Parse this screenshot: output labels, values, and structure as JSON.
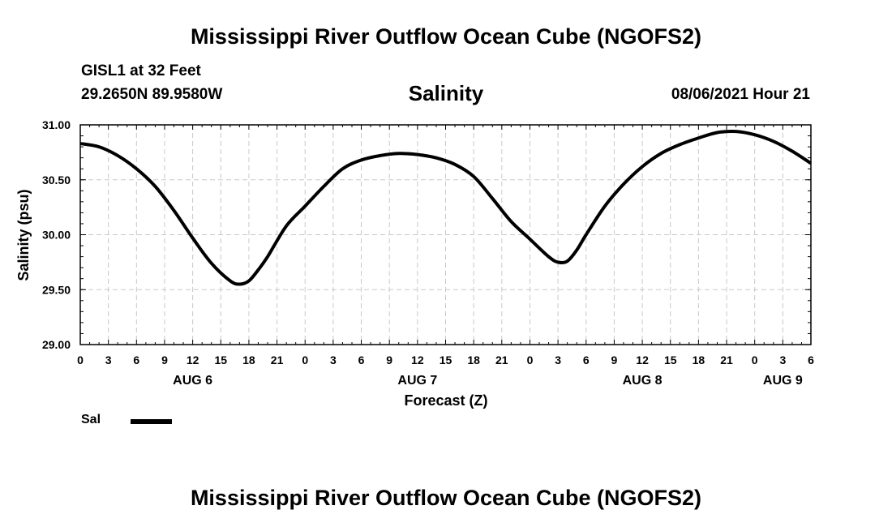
{
  "header": {
    "title": "Mississippi River Outflow Ocean Cube (NGOFS2)",
    "station": "GISL1 at 32 Feet",
    "coordinates": "29.2650N  89.9580W",
    "variable": "Salinity",
    "timestamp": "08/06/2021 Hour 21"
  },
  "footer": {
    "title": "Mississippi River Outflow Ocean Cube (NGOFS2)"
  },
  "legend": {
    "label": "Sal",
    "color": "#000000"
  },
  "chart_data": {
    "type": "line",
    "title": "Salinity",
    "xlabel": "Forecast (Z)",
    "ylabel": "Salinity (psu)",
    "ylim": [
      29.0,
      31.0
    ],
    "yticks": [
      "29.00",
      "29.50",
      "30.00",
      "30.50",
      "31.00"
    ],
    "xlim_hours": [
      0,
      78
    ],
    "xtick_labels": [
      "0",
      "3",
      "6",
      "9",
      "12",
      "15",
      "18",
      "21",
      "0",
      "3",
      "6",
      "9",
      "12",
      "15",
      "18",
      "21",
      "0",
      "3",
      "6",
      "9",
      "12",
      "15",
      "18",
      "21",
      "0",
      "3",
      "6"
    ],
    "date_labels": [
      {
        "label": "AUG 6",
        "hour": 12
      },
      {
        "label": "AUG 7",
        "hour": 36
      },
      {
        "label": "AUG 8",
        "hour": 60
      },
      {
        "label": "AUG 9",
        "hour": 75
      }
    ],
    "grid": true,
    "series": [
      {
        "name": "Sal",
        "color": "#000000",
        "x": [
          0,
          2,
          4,
          6,
          8,
          10,
          12,
          14,
          16,
          17,
          18,
          19,
          20,
          22,
          24,
          26,
          28,
          30,
          32,
          34,
          36,
          38,
          40,
          42,
          44,
          46,
          48,
          50,
          51,
          52,
          53,
          54,
          56,
          58,
          60,
          62,
          64,
          66,
          68,
          70,
          72,
          74,
          76,
          78
        ],
        "values": [
          30.83,
          30.8,
          30.72,
          30.6,
          30.44,
          30.22,
          29.97,
          29.74,
          29.58,
          29.55,
          29.58,
          29.68,
          29.8,
          30.08,
          30.26,
          30.44,
          30.6,
          30.68,
          30.72,
          30.74,
          30.73,
          30.7,
          30.64,
          30.53,
          30.33,
          30.12,
          29.96,
          29.8,
          29.75,
          29.76,
          29.86,
          30.0,
          30.26,
          30.46,
          30.62,
          30.74,
          30.82,
          30.88,
          30.93,
          30.94,
          30.91,
          30.85,
          30.76,
          30.65
        ]
      }
    ]
  }
}
